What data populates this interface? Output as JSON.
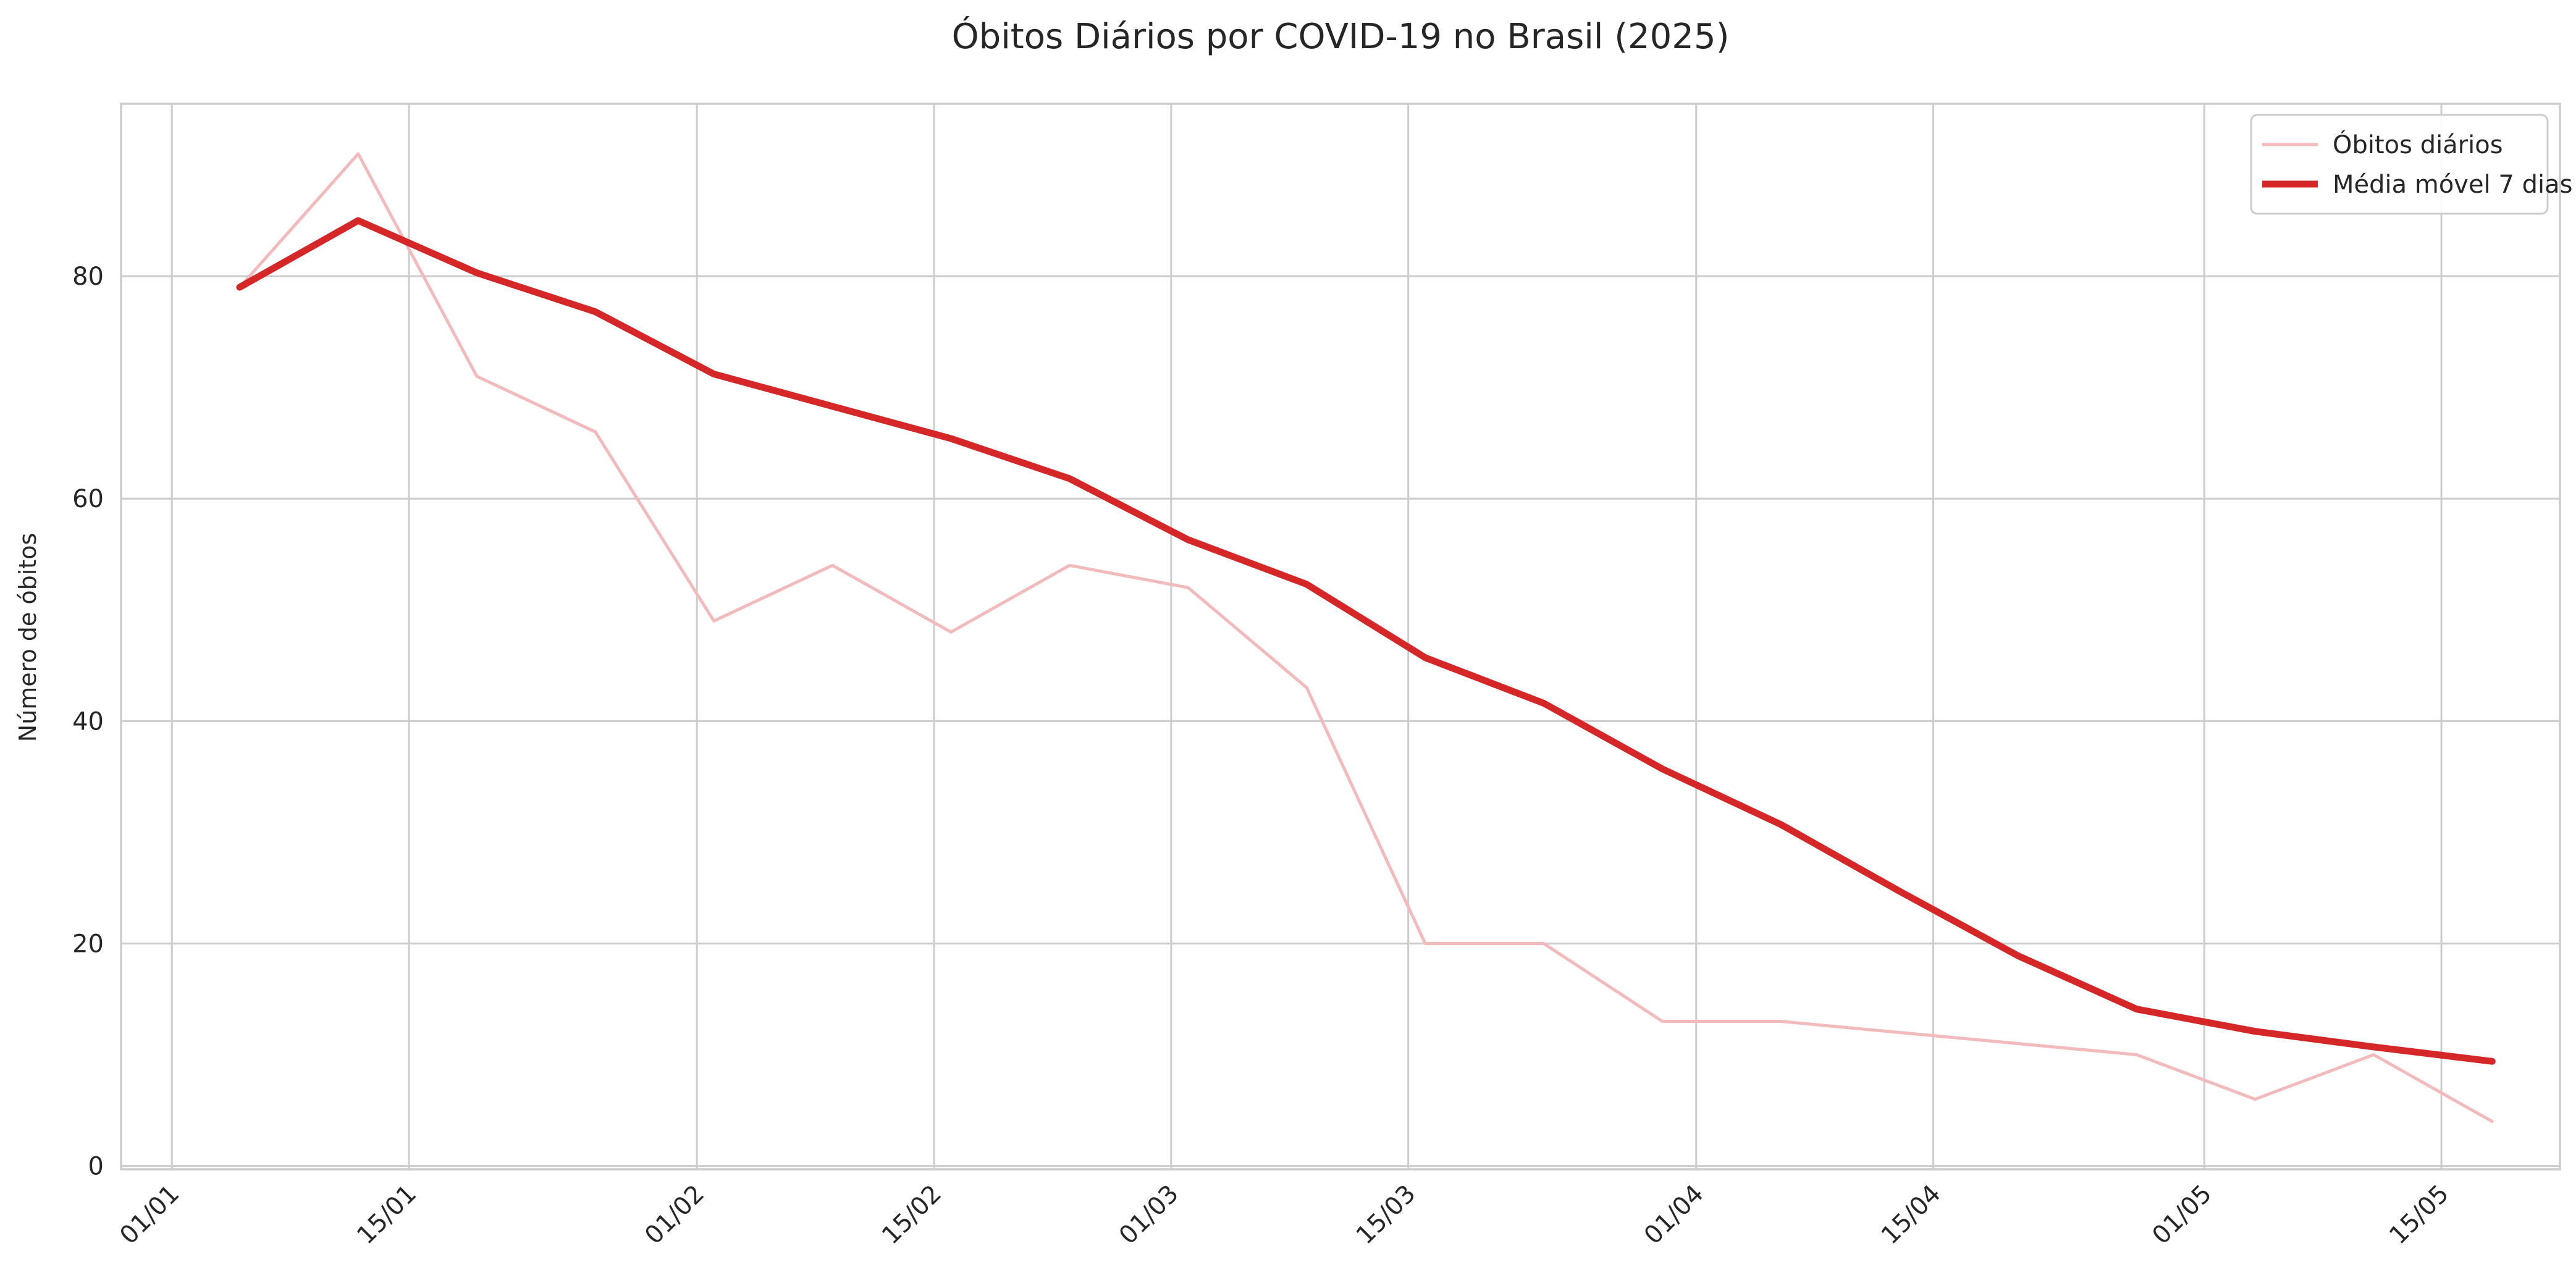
{
  "chart_data": {
    "type": "line",
    "title": "Óbitos Diários por COVID-19 no Brasil (2025)",
    "xlabel": "",
    "ylabel": "Número de óbitos",
    "x_ticks": [
      {
        "date": "2025-01-01",
        "label": "01/01"
      },
      {
        "date": "2025-01-15",
        "label": "15/01"
      },
      {
        "date": "2025-02-01",
        "label": "01/02"
      },
      {
        "date": "2025-02-15",
        "label": "15/02"
      },
      {
        "date": "2025-03-01",
        "label": "01/03"
      },
      {
        "date": "2025-03-15",
        "label": "15/03"
      },
      {
        "date": "2025-04-01",
        "label": "01/04"
      },
      {
        "date": "2025-04-15",
        "label": "15/04"
      },
      {
        "date": "2025-05-01",
        "label": "01/05"
      },
      {
        "date": "2025-05-15",
        "label": "15/05"
      }
    ],
    "y_ticks": [
      0,
      20,
      40,
      60,
      80
    ],
    "xlim": [
      "2024-12-29",
      "2025-05-22"
    ],
    "ylim": [
      -0.3,
      95.5
    ],
    "grid": true,
    "legend_position": "top-right",
    "x": [
      "2025-01-05",
      "2025-01-12",
      "2025-01-19",
      "2025-01-26",
      "2025-02-02",
      "2025-02-09",
      "2025-02-16",
      "2025-02-23",
      "2025-03-02",
      "2025-03-09",
      "2025-03-16",
      "2025-03-23",
      "2025-03-30",
      "2025-04-06",
      "2025-04-13",
      "2025-04-20",
      "2025-04-27",
      "2025-05-04",
      "2025-05-11",
      "2025-05-18"
    ],
    "series": [
      {
        "name": "Óbitos diários",
        "color": "#f2baba",
        "style": "thin",
        "values": [
          79,
          91,
          71,
          66,
          49,
          54,
          48,
          54,
          52,
          43,
          20,
          20,
          13,
          13,
          12,
          11,
          10,
          6,
          10,
          4
        ]
      },
      {
        "name": "Média móvel 7 dias",
        "color": "#d62728",
        "style": "thick",
        "values": [
          79,
          85,
          80.3,
          76.8,
          71.2,
          68.3,
          65.4,
          61.8,
          56.3,
          52.3,
          45.7,
          41.6,
          35.7,
          30.7,
          24.7,
          18.9,
          14.1,
          12.1,
          10.7,
          9.4
        ]
      }
    ]
  }
}
